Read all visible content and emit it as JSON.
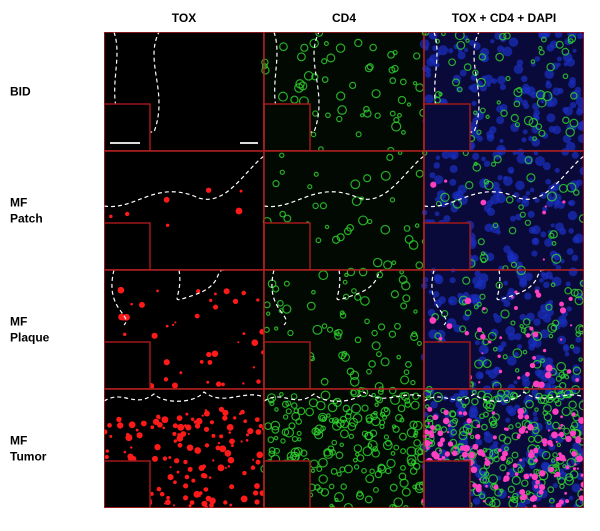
{
  "columns": [
    "TOX",
    "CD4",
    "TOX + CD4 + DAPI"
  ],
  "rows": [
    {
      "label": [
        "BID"
      ]
    },
    {
      "label": [
        "MF",
        "Patch"
      ]
    },
    {
      "label": [
        "MF",
        "Plaque"
      ]
    },
    {
      "label": [
        "MF",
        "Tumor"
      ]
    }
  ]
}
